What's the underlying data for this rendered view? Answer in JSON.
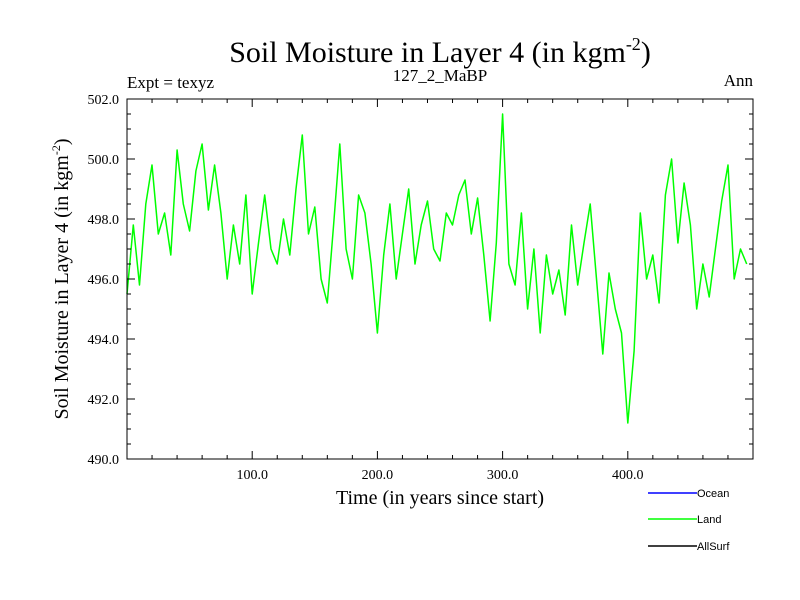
{
  "header": {
    "title_main": "Soil Moisture in Layer 4 (in kgm",
    "title_exp": "-2",
    "title_close": ")",
    "left_label": "Expt = texyz",
    "center_label": "127_2_MaBP",
    "right_label": "Ann"
  },
  "chart_data": {
    "type": "line",
    "title": "Soil Moisture in Layer 4 (in kgm-2)",
    "xlabel": "Time (in years since start)",
    "ylabel_main": "Soil Moisture in Layer 4 (in kgm",
    "ylabel_exp": "-2",
    "ylabel_close": ")",
    "xlim": [
      0,
      500
    ],
    "ylim": [
      490,
      502
    ],
    "x_ticks": [
      100,
      200,
      300,
      400
    ],
    "x_tick_labels": [
      "100.0",
      "200.0",
      "300.0",
      "400.0"
    ],
    "y_ticks": [
      490,
      492,
      494,
      496,
      498,
      500,
      502
    ],
    "y_tick_labels": [
      "490.0",
      "492.0",
      "494.0",
      "496.0",
      "498.0",
      "500.0",
      "502.0"
    ],
    "legend": [
      {
        "name": "Ocean",
        "color": "#0000ff"
      },
      {
        "name": "Land",
        "color": "#00ff00"
      },
      {
        "name": "AllSurf",
        "color": "#000000"
      }
    ],
    "legend_position": "bottom-right",
    "series": [
      {
        "name": "Land",
        "color": "#00ff00",
        "x": [
          0,
          5,
          10,
          15,
          20,
          25,
          30,
          35,
          40,
          45,
          50,
          55,
          60,
          65,
          70,
          75,
          80,
          85,
          90,
          95,
          100,
          105,
          110,
          115,
          120,
          125,
          130,
          135,
          140,
          145,
          150,
          155,
          160,
          165,
          170,
          175,
          180,
          185,
          190,
          195,
          200,
          205,
          210,
          215,
          220,
          225,
          230,
          235,
          240,
          245,
          250,
          255,
          260,
          265,
          270,
          275,
          280,
          285,
          290,
          295,
          300,
          305,
          310,
          315,
          320,
          325,
          330,
          335,
          340,
          345,
          350,
          355,
          360,
          365,
          370,
          375,
          380,
          385,
          390,
          395,
          400,
          405,
          410,
          415,
          420,
          425,
          430,
          435,
          440,
          445,
          450,
          455,
          460,
          465,
          470,
          475,
          480,
          485,
          490,
          495
        ],
        "values": [
          495.5,
          497.8,
          495.8,
          498.5,
          499.8,
          497.5,
          498.2,
          496.8,
          500.3,
          498.5,
          497.6,
          499.6,
          500.5,
          498.3,
          499.8,
          498.2,
          496.0,
          497.8,
          496.5,
          498.8,
          495.5,
          497.2,
          498.8,
          497.0,
          496.5,
          498.0,
          496.8,
          499.0,
          500.8,
          497.5,
          498.4,
          496.0,
          495.2,
          497.8,
          500.5,
          497.0,
          496.0,
          498.8,
          498.2,
          496.5,
          494.2,
          496.8,
          498.5,
          496.0,
          497.5,
          499.0,
          496.5,
          497.8,
          498.6,
          497.0,
          496.6,
          498.2,
          497.8,
          498.8,
          499.3,
          497.5,
          498.7,
          496.8,
          494.6,
          497.2,
          501.5,
          496.5,
          495.8,
          498.2,
          495.0,
          497.0,
          494.2,
          496.8,
          495.5,
          496.3,
          494.8,
          497.8,
          495.8,
          497.2,
          498.5,
          496.0,
          493.5,
          496.2,
          495.0,
          494.2,
          491.2,
          493.6,
          498.2,
          496.0,
          496.8,
          495.2,
          498.8,
          500.0,
          497.2,
          499.2,
          497.8,
          495.0,
          496.5,
          495.4,
          497.0,
          498.6,
          499.8,
          496.0,
          497.0,
          496.5
        ]
      }
    ]
  }
}
